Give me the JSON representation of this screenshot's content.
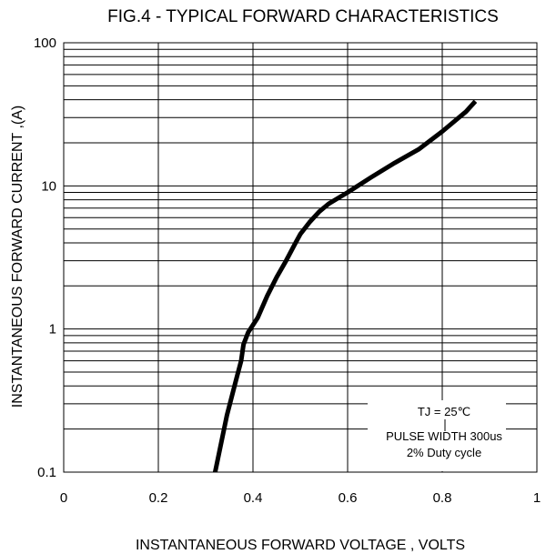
{
  "chart_data": {
    "type": "line",
    "title": "FIG.4 - TYPICAL FORWARD CHARACTERISTICS",
    "xlabel": "INSTANTANEOUS FORWARD VOLTAGE , VOLTS",
    "ylabel": "INSTANTANEOUS  FORWARD CURRENT ,(A)",
    "x_scale": "linear",
    "y_scale": "log",
    "xlim": [
      0,
      1
    ],
    "ylim": [
      0.1,
      100
    ],
    "x_ticks": [
      "0",
      "0.2",
      "0.4",
      "0.6",
      "0.8",
      "1"
    ],
    "y_ticks": [
      "0.1",
      "1",
      "10",
      "100"
    ],
    "grid": true,
    "annotations": [
      "TJ = 25℃",
      "PULSE WIDTH 300us",
      "2% Duty cycle"
    ],
    "series": [
      {
        "x": [
          0.32,
          0.345,
          0.365,
          0.375,
          0.38,
          0.39,
          0.41,
          0.43,
          0.45,
          0.47,
          0.49,
          0.5,
          0.52,
          0.54,
          0.56,
          0.6,
          0.65,
          0.7,
          0.75,
          0.8,
          0.85,
          0.87
        ],
        "y": [
          0.1,
          0.25,
          0.45,
          0.6,
          0.78,
          0.95,
          1.2,
          1.7,
          2.3,
          3.0,
          4.0,
          4.6,
          5.6,
          6.6,
          7.5,
          9.0,
          11.5,
          14.5,
          18.0,
          24.0,
          33.0,
          39.0
        ]
      }
    ]
  }
}
